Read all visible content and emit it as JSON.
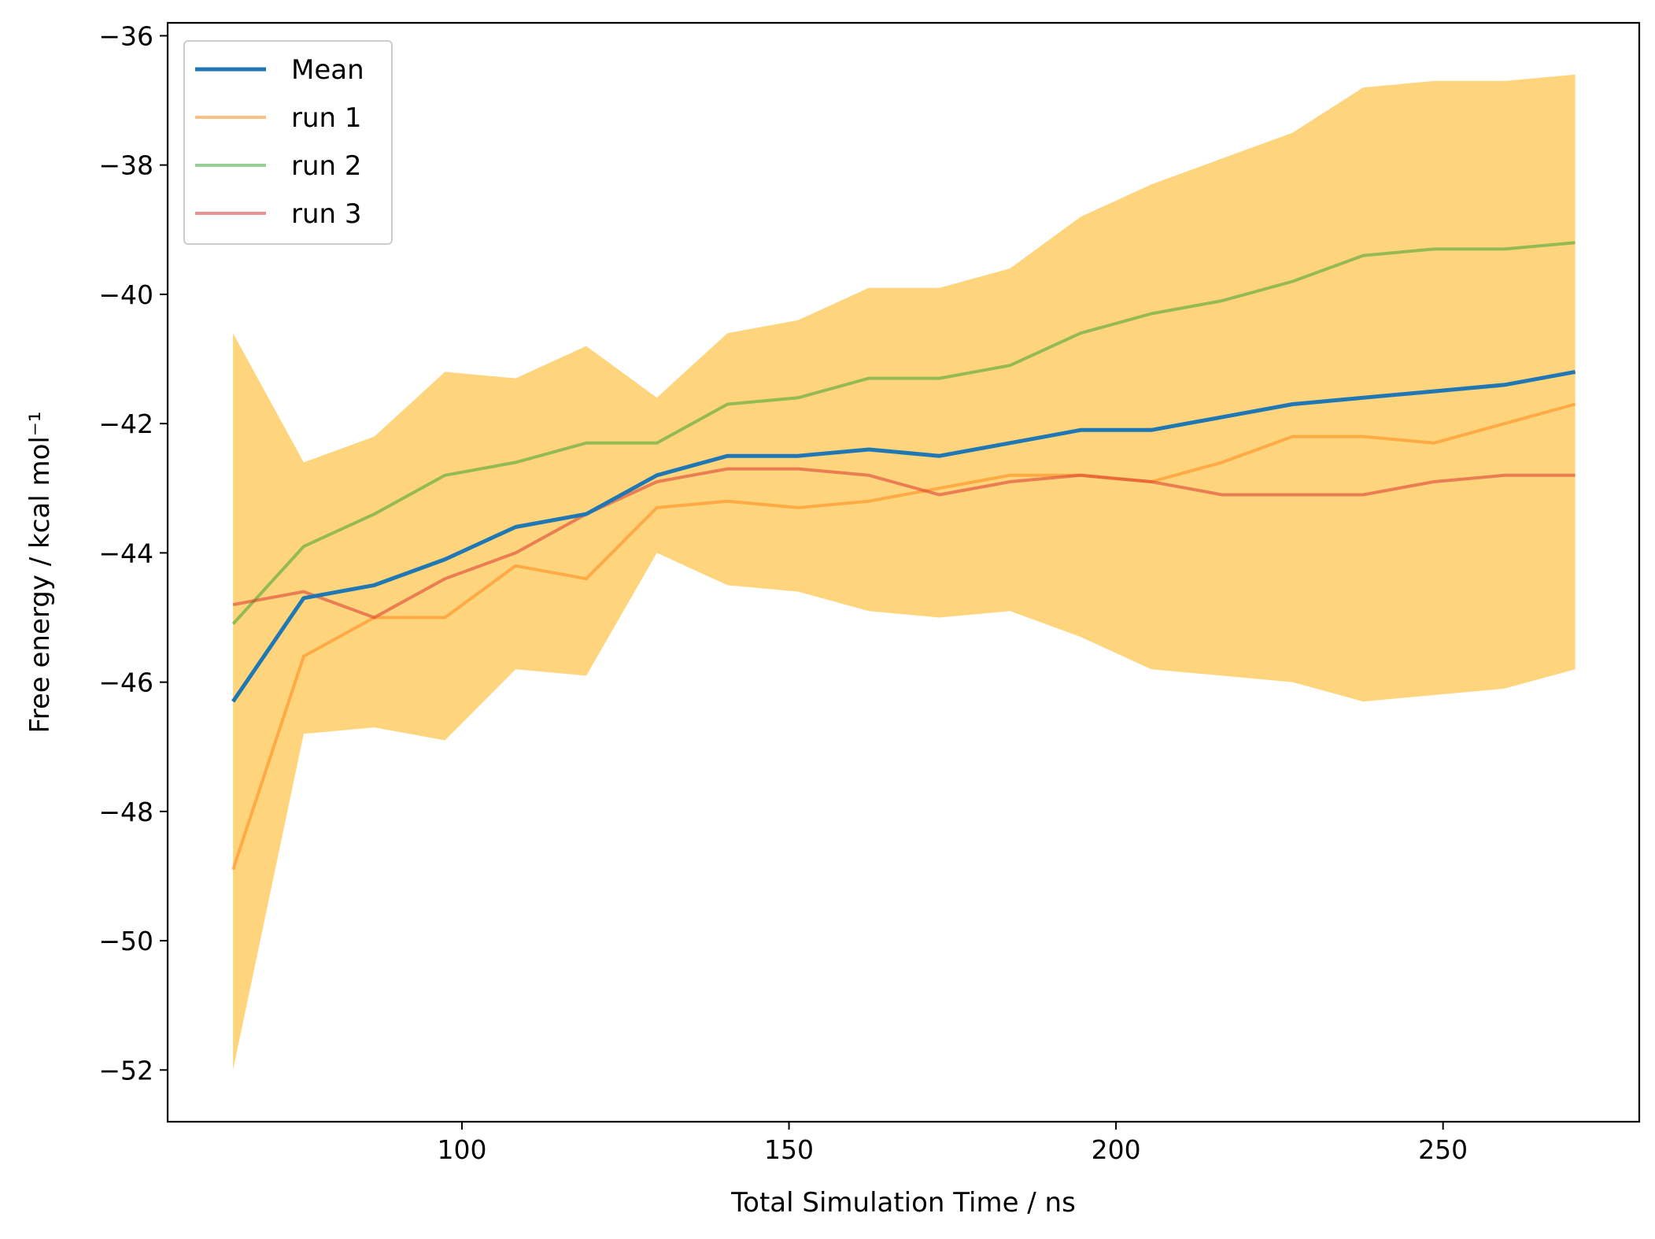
{
  "chart_data": {
    "type": "line",
    "title": "",
    "xlabel": "Total Simulation Time / ns",
    "ylabel": "Free energy / kcal mol⁻¹",
    "xlim": [
      55,
      280
    ],
    "ylim": [
      -52.8,
      -35.8
    ],
    "xticks": [
      100,
      150,
      200,
      250
    ],
    "yticks": [
      -52,
      -50,
      -48,
      -46,
      -44,
      -42,
      -40,
      -38,
      -36
    ],
    "tick_labels": {
      "x": [
        "100",
        "150",
        "200",
        "250"
      ],
      "y": [
        "−52",
        "−50",
        "−48",
        "−46",
        "−44",
        "−42",
        "−40",
        "−38",
        "−36"
      ]
    },
    "grid": false,
    "legend_position": "top-left",
    "x": [
      65,
      75.8,
      86.6,
      97.4,
      108.2,
      119,
      129.8,
      140.6,
      151.4,
      162.2,
      173,
      183.8,
      194.6,
      205.4,
      216.2,
      227,
      237.8,
      248.6,
      259.4,
      270.2
    ],
    "band": {
      "color": "#FDB927",
      "opacity": 0.6,
      "upper": [
        -40.6,
        -42.6,
        -42.2,
        -41.2,
        -41.3,
        -40.8,
        -41.6,
        -40.6,
        -40.4,
        -39.9,
        -39.9,
        -39.6,
        -38.8,
        -38.3,
        -37.9,
        -37.5,
        -36.8,
        -36.7,
        -36.7,
        -36.6
      ],
      "lower": [
        -52.0,
        -46.8,
        -46.7,
        -46.9,
        -45.8,
        -45.9,
        -44.0,
        -44.5,
        -44.6,
        -44.9,
        -45.0,
        -44.9,
        -45.3,
        -45.8,
        -45.9,
        -46.0,
        -46.3,
        -46.2,
        -46.1,
        -45.8
      ]
    },
    "series": [
      {
        "name": "Mean",
        "color": "#1F77B4",
        "opacity": 1,
        "values": [
          -46.3,
          -44.7,
          -44.5,
          -44.1,
          -43.6,
          -43.4,
          -42.8,
          -42.5,
          -42.5,
          -42.4,
          -42.5,
          -42.3,
          -42.1,
          -42.1,
          -41.9,
          -41.7,
          -41.6,
          -41.5,
          -41.4,
          -41.2
        ]
      },
      {
        "name": "run 1",
        "color": "#FF7F0E",
        "opacity": 0.5,
        "values": [
          -48.9,
          -45.6,
          -45.0,
          -45.0,
          -44.2,
          -44.4,
          -43.3,
          -43.2,
          -43.3,
          -43.2,
          -43.0,
          -42.8,
          -42.8,
          -42.9,
          -42.6,
          -42.2,
          -42.2,
          -42.3,
          -42.0,
          -41.7
        ]
      },
      {
        "name": "run 2",
        "color": "#2CA02C",
        "opacity": 0.5,
        "values": [
          -45.1,
          -43.9,
          -43.4,
          -42.8,
          -42.6,
          -42.3,
          -42.3,
          -41.7,
          -41.6,
          -41.3,
          -41.3,
          -41.1,
          -40.6,
          -40.3,
          -40.1,
          -39.8,
          -39.4,
          -39.3,
          -39.3,
          -39.2
        ]
      },
      {
        "name": "run 3",
        "color": "#D62728",
        "opacity": 0.5,
        "values": [
          -44.8,
          -44.6,
          -45.0,
          -44.4,
          -44.0,
          -43.4,
          -42.9,
          -42.7,
          -42.7,
          -42.8,
          -43.1,
          -42.9,
          -42.8,
          -42.9,
          -43.1,
          -43.1,
          -43.1,
          -42.9,
          -42.8,
          -42.8
        ]
      }
    ]
  }
}
